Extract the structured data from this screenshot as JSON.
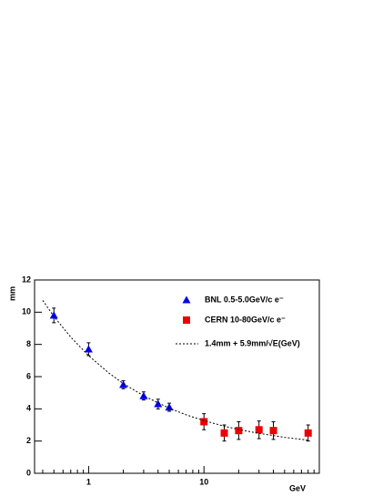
{
  "chart_data": {
    "type": "scatter",
    "x_label": "GeV",
    "y_label": "mm",
    "xscale": "log",
    "xlim": [
      0.34,
      100
    ],
    "xticks": [
      1,
      10
    ],
    "xminorticks": [
      0.4,
      0.5,
      0.6,
      0.7,
      0.8,
      0.9,
      2,
      3,
      4,
      5,
      6,
      7,
      8,
      9,
      20,
      30,
      40,
      50,
      60,
      70,
      80,
      90
    ],
    "ylim": [
      0,
      12
    ],
    "yticks": [
      0,
      2,
      4,
      6,
      8,
      10,
      12
    ],
    "legend": "top-right",
    "series": [
      {
        "name": "BNL 0.5-5.0GeV/c e⁻",
        "color": "#0000ee",
        "marker": "triangle",
        "x": [
          0.5,
          1,
          2,
          3,
          4,
          5
        ],
        "values": [
          9.8,
          7.7,
          5.5,
          4.8,
          4.3,
          4.1
        ],
        "errors": [
          0.45,
          0.4,
          0.25,
          0.25,
          0.3,
          0.25
        ]
      },
      {
        "name": "CERN 10-80GeV/c e⁻",
        "color": "#ee0000",
        "marker": "square",
        "x": [
          10,
          15,
          20,
          30,
          40,
          80
        ],
        "values": [
          3.2,
          2.5,
          2.65,
          2.7,
          2.65,
          2.5
        ],
        "errors": [
          0.5,
          0.5,
          0.55,
          0.55,
          0.55,
          0.5
        ]
      },
      {
        "name": "1.4mm + 5.9mm/√E(GeV)",
        "color": "#000000",
        "marker": "dashed-line",
        "x": [
          0.4,
          0.5,
          0.7,
          1,
          1.5,
          2,
          3,
          5,
          7,
          10,
          15,
          20,
          30,
          50,
          80
        ],
        "values": [
          10.73,
          9.74,
          8.45,
          7.3,
          6.22,
          5.57,
          4.81,
          4.04,
          3.63,
          3.27,
          2.92,
          2.72,
          2.48,
          2.23,
          2.06
        ]
      }
    ]
  }
}
